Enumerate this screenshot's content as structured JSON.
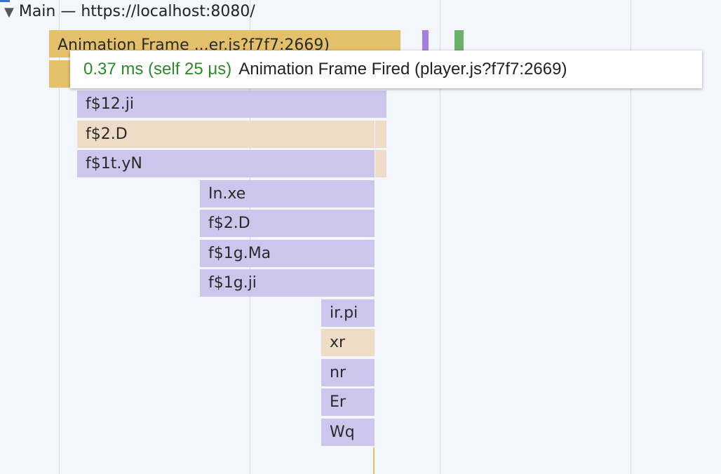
{
  "header": {
    "title": "Main — https://localhost:8080/"
  },
  "tooltip": {
    "timing": "0.37 ms (self 25 μs)",
    "description": "Animation Frame Fired (player.js?f7f7:2669)"
  },
  "frames": [
    {
      "label": "Animation Frame ...er.js?f7f7:2669)"
    },
    {
      "label": "f$12.ji"
    },
    {
      "label": "f$2.D"
    },
    {
      "label": "f$1t.yN"
    },
    {
      "label": "In.xe"
    },
    {
      "label": "f$2.D"
    },
    {
      "label": "f$1g.Ma"
    },
    {
      "label": "f$1g.ji"
    },
    {
      "label": "ir.pi"
    },
    {
      "label": "xr"
    },
    {
      "label": "nr"
    },
    {
      "label": "Er"
    },
    {
      "label": "Wq"
    }
  ]
}
